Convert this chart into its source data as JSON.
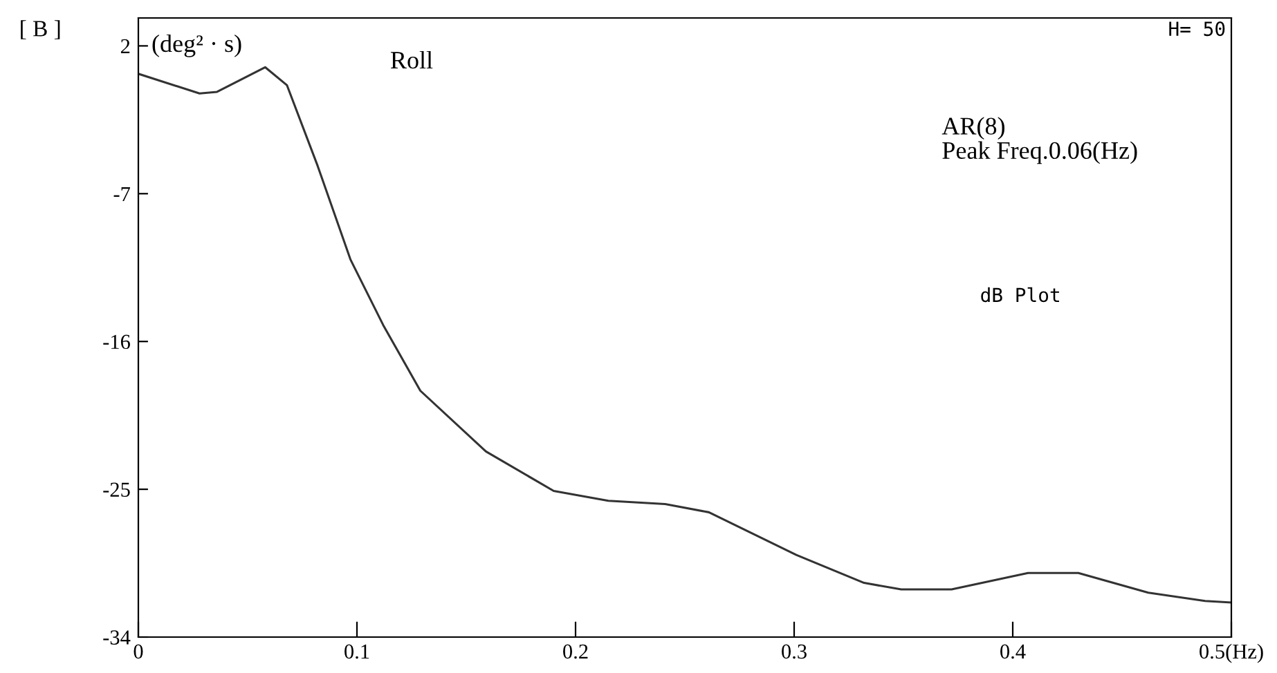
{
  "chart_data": {
    "type": "line",
    "title": "Roll",
    "ylabel": "(deg² · s)",
    "annotations": [
      "[ B ]",
      "H= 50",
      "AR(8)\nPeak Freq.0.06(Hz)",
      "dB Plot"
    ],
    "x": [
      0,
      0.028,
      0.036,
      0.058,
      0.068,
      0.082,
      0.097,
      0.112,
      0.129,
      0.159,
      0.19,
      0.215,
      0.241,
      0.261,
      0.301,
      0.332,
      0.349,
      0.372,
      0.407,
      0.43,
      0.462,
      0.488,
      0.5
    ],
    "series": [
      {
        "color": "#333333",
        "values": [
          0.3,
          -0.9,
          -0.8,
          0.7,
          -0.4,
          -5.3,
          -11.0,
          -15.0,
          -19.0,
          -22.7,
          -25.1,
          -25.7,
          -25.9,
          -26.4,
          -29.0,
          -30.7,
          -31.1,
          -31.1,
          -30.1,
          -30.1,
          -31.3,
          -31.8,
          -31.9
        ]
      }
    ],
    "xlim": [
      0,
      0.5
    ],
    "ylim": [
      -34,
      3.7
    ],
    "xticks": [
      0,
      0.1,
      0.2,
      0.3,
      0.4,
      {
        "value": 0.5,
        "label": "0.5(Hz)"
      }
    ],
    "yticks": [
      2,
      -7,
      -16,
      -25,
      -34
    ],
    "grid": false,
    "legend": false,
    "marker": "none",
    "line_style": "solid"
  }
}
